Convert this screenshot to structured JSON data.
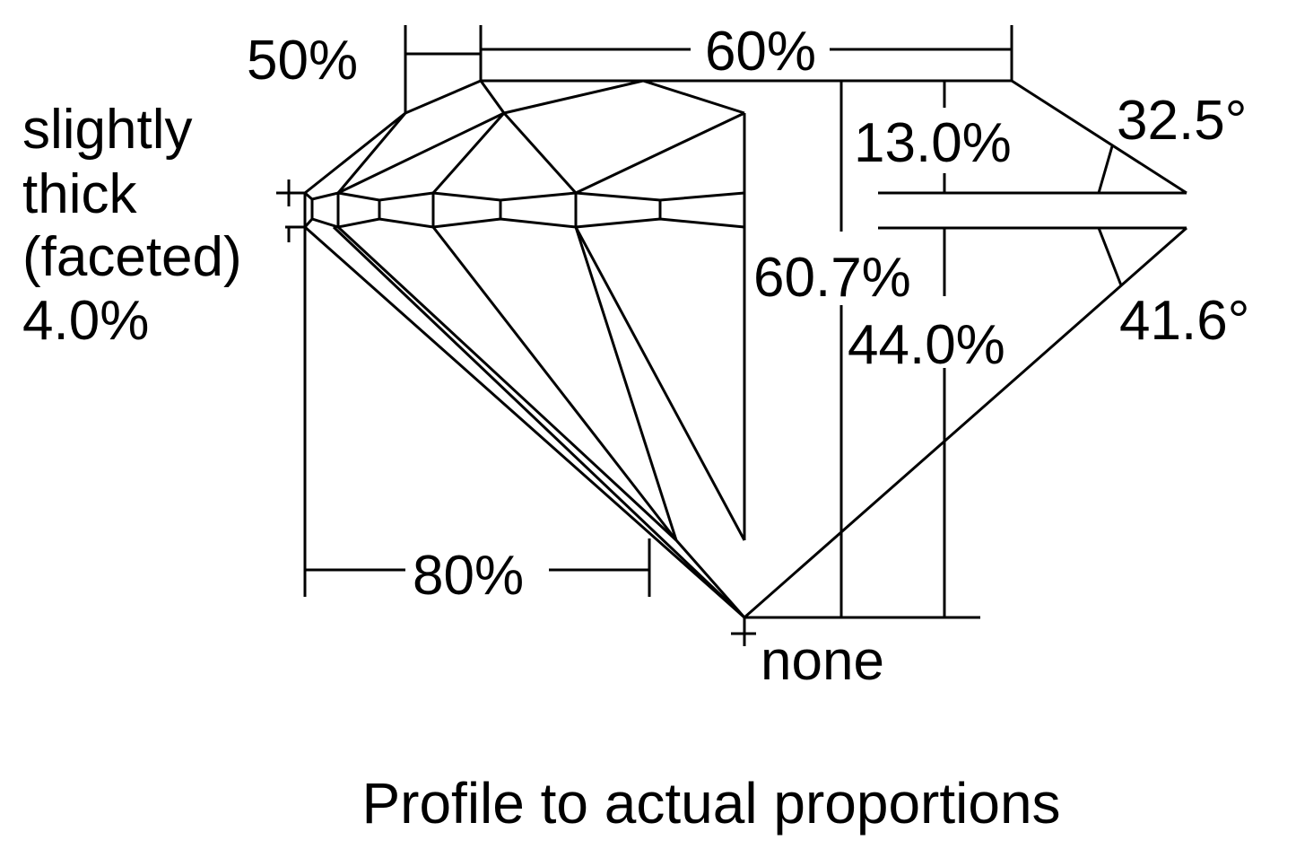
{
  "labels": {
    "star_length": "50%",
    "table": "60%",
    "girdle_line1": "slightly",
    "girdle_line2": "thick",
    "girdle_line3": "(faceted)",
    "girdle_percent": "4.0%",
    "crown_height": "13.0%",
    "crown_angle": "32.5°",
    "total_depth": "60.7%",
    "pavilion_depth": "44.0%",
    "pavilion_angle": "41.6°",
    "lower_half": "80%",
    "culet": "none"
  },
  "caption": "Profile to actual proportions",
  "colors": {
    "line": "#000000",
    "background": "#ffffff"
  }
}
